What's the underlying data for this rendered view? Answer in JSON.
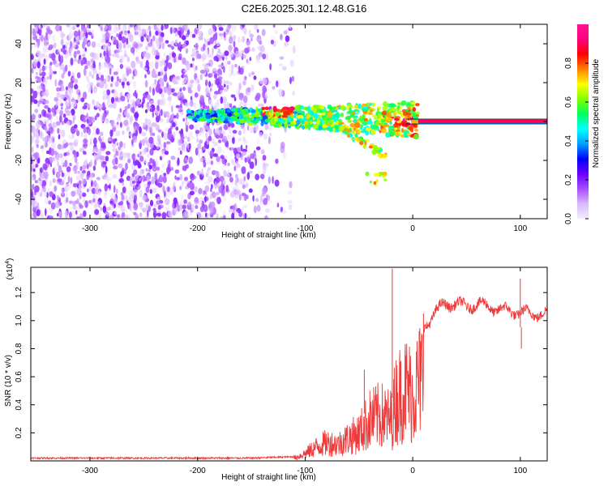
{
  "title": "C2E6.2025.301.12.48.G16",
  "colors": {
    "axis": "#000000",
    "snr_line": "#ee3a3a",
    "background": "#ffffff",
    "colormap": [
      "#f4ecff",
      "#d9b8ff",
      "#a64dff",
      "#6a00ff",
      "#0000ff",
      "#00a0ff",
      "#00ffff",
      "#00ff60",
      "#80ff00",
      "#ffff00",
      "#ff8000",
      "#ff0000",
      "#ff0080",
      "#ff1493"
    ]
  },
  "chart_data": [
    {
      "type": "heatmap",
      "name": "spectrogram",
      "xlabel": "Height of straight line (km)",
      "ylabel": "Frequency (Hz)",
      "xlim": [
        -355,
        125
      ],
      "ylim": [
        -50,
        50
      ],
      "xticks": [
        -300,
        -200,
        -100,
        0,
        100
      ],
      "xtick_labels": [
        "-300",
        "-200",
        "-100",
        "0",
        "100"
      ],
      "yticks": [
        -40,
        -20,
        0,
        20,
        40
      ],
      "ytick_labels": [
        "-40",
        "-20",
        "0",
        "20",
        "40"
      ],
      "colorbar": {
        "label": "Normalized spectral amplitude",
        "range": [
          0,
          1
        ],
        "ticks": [
          0.0,
          0.2,
          0.4,
          0.6,
          0.8
        ],
        "tick_labels": [
          "0.0",
          "0.2",
          "0.4",
          "0.6",
          "0.8"
        ]
      },
      "features": {
        "noise_region_x": [
          -355,
          -135
        ],
        "noise_amplitude_range": [
          0.0,
          0.2
        ],
        "carrier_line": {
          "x_start": 5,
          "x_end": 125,
          "frequency": 0,
          "amplitude": 0.95
        },
        "signal_band_x": [
          -210,
          5
        ],
        "signal_band_frequency": [
          -6,
          10
        ]
      }
    },
    {
      "type": "line",
      "name": "snr",
      "xlabel": "Height of straight line (km)",
      "ylabel": "SNR (10 * v/v)",
      "scale_label": "(x10",
      "scale_exponent": "4",
      "xlim": [
        -355,
        125
      ],
      "ylim": [
        0.0,
        1.38
      ],
      "xticks": [
        -300,
        -200,
        -100,
        0,
        100
      ],
      "xtick_labels": [
        "-300",
        "-200",
        "-100",
        "0",
        "100"
      ],
      "yticks": [
        0.2,
        0.4,
        0.6,
        0.8,
        1.0,
        1.2
      ],
      "ytick_labels": [
        "0.2",
        "0.4",
        "0.6",
        "0.8",
        "1.0",
        "1.2"
      ],
      "series": [
        {
          "name": "SNR",
          "x": [
            -355,
            -300,
            -250,
            -200,
            -150,
            -110,
            -100,
            -90,
            -80,
            -70,
            -60,
            -50,
            -40,
            -30,
            -20,
            -15,
            -10,
            -5,
            0,
            5,
            10,
            20,
            30,
            40,
            50,
            60,
            70,
            80,
            90,
            100,
            110,
            125
          ],
          "y": [
            0.02,
            0.02,
            0.02,
            0.02,
            0.02,
            0.03,
            0.08,
            0.15,
            0.2,
            0.18,
            0.25,
            0.3,
            0.45,
            0.5,
            0.45,
            0.7,
            0.75,
            0.8,
            0.7,
            0.85,
            0.95,
            1.05,
            1.12,
            1.12,
            1.1,
            1.12,
            1.1,
            1.08,
            1.07,
            1.06,
            1.05,
            1.05
          ]
        }
      ],
      "spikes": [
        {
          "x": -19,
          "y": 1.37
        },
        {
          "x": -45,
          "y": 0.65
        },
        {
          "x": 100,
          "y": 1.3
        },
        {
          "x": 101,
          "y": 0.8
        },
        {
          "x": 7,
          "y": 0.3
        },
        {
          "x": 10,
          "y": 1.05
        }
      ]
    }
  ]
}
